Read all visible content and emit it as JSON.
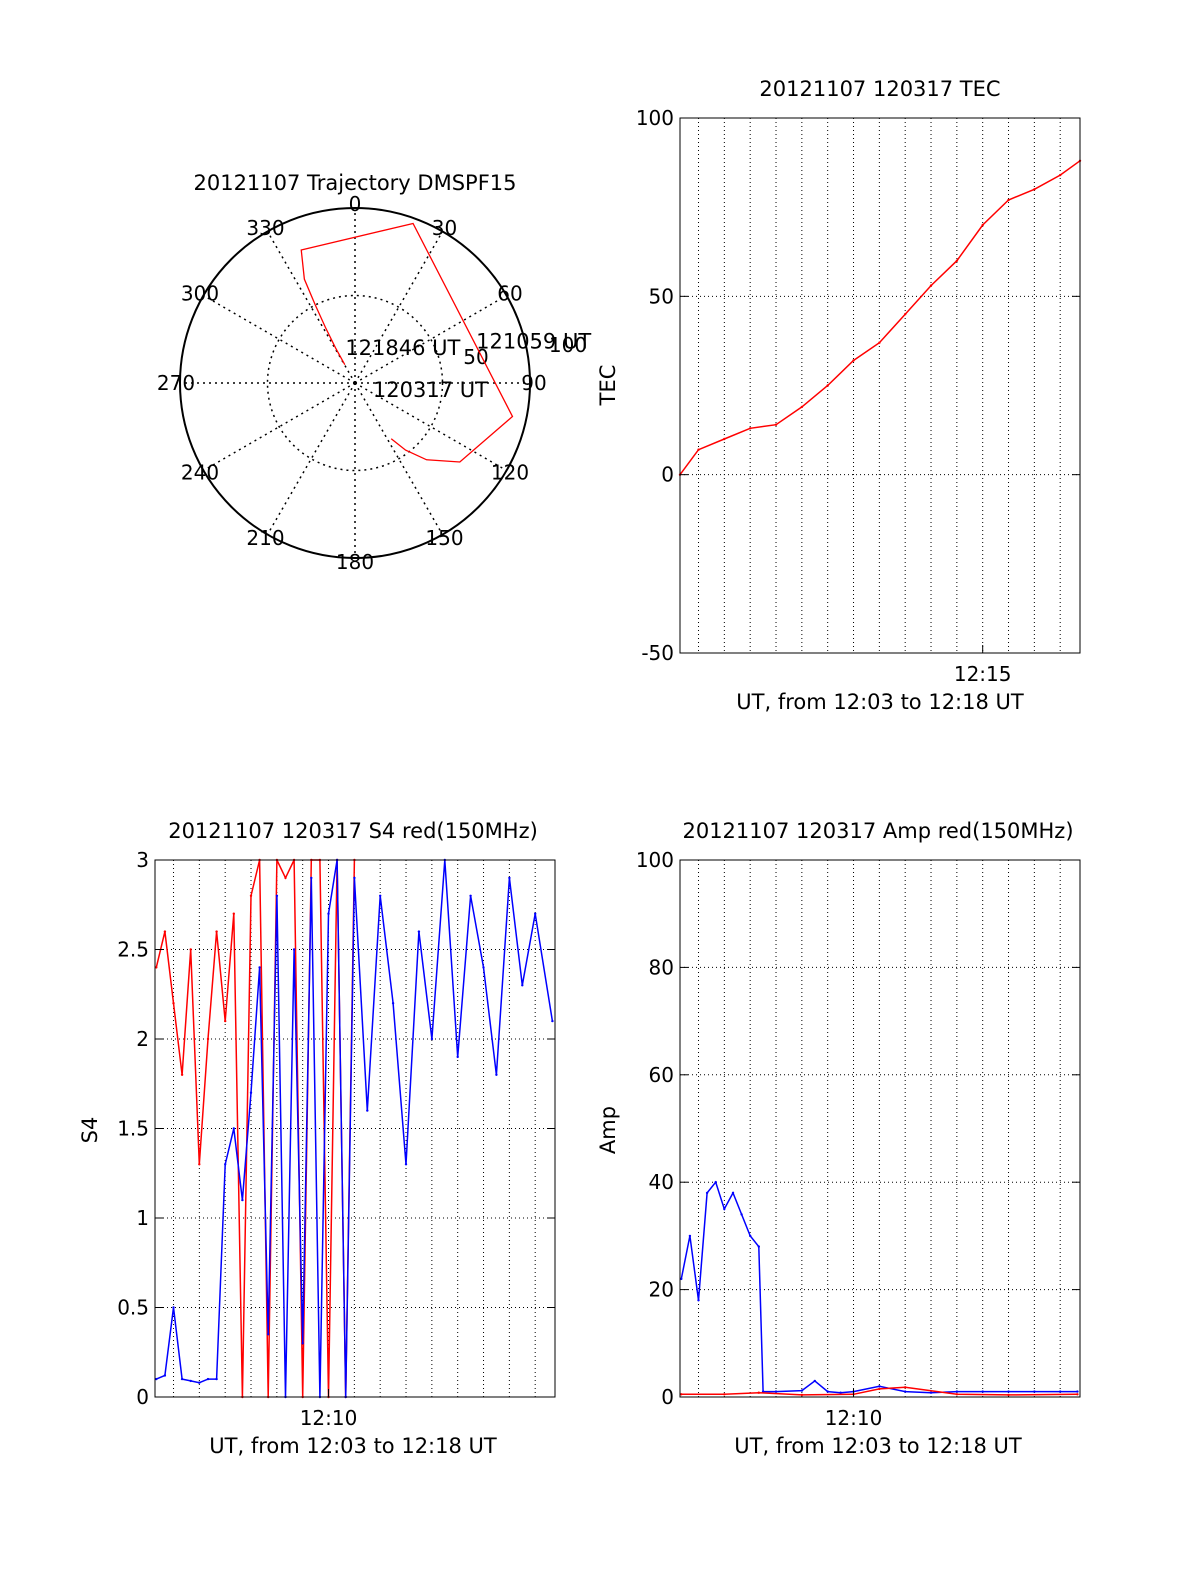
{
  "chart_data": [
    {
      "type": "polar",
      "title": "20121107 Trajectory DMSPF15",
      "angle_labels": [
        "0",
        "30",
        "60",
        "90",
        "120",
        "150",
        "180",
        "210",
        "240",
        "270",
        "300",
        "330"
      ],
      "radial_labels": [
        "50",
        "100"
      ],
      "rmax": 100,
      "grid": true,
      "colors": {
        "trajectory": "#ff0000"
      },
      "trajectory": [
        {
          "az": 147,
          "el": 38
        },
        {
          "az": 143,
          "el": 48
        },
        {
          "az": 137,
          "el": 60
        },
        {
          "az": 127,
          "el": 75
        },
        {
          "az": 102,
          "el": 92
        },
        {
          "az": 20,
          "el": 97
        },
        {
          "az": -22,
          "el": 82
        },
        {
          "az": -26,
          "el": 66
        },
        {
          "az": -27,
          "el": 50
        },
        {
          "az": -28,
          "el": 36
        },
        {
          "az": -29,
          "el": 23
        },
        {
          "az": -29,
          "el": 12
        }
      ],
      "annotations": [
        {
          "text": "121846 UT",
          "az": -19,
          "el": 17
        },
        {
          "text": "121059 UT",
          "az": 74,
          "el": 72
        },
        {
          "text": "120317 UT",
          "az": 128,
          "el": 13
        }
      ]
    },
    {
      "type": "line",
      "title": "20121107 120317 TEC",
      "xlabel": "UT, from 12:03 to 12:18 UT",
      "ylabel": "TEC",
      "xlim": [
        "12:03:17",
        "12:18:46"
      ],
      "ylim": [
        -50,
        100
      ],
      "yticks": [
        -50,
        0,
        50,
        100
      ],
      "xticks": [
        {
          "value": "12:15:00",
          "label": "12:15"
        }
      ],
      "grid": true,
      "series": [
        {
          "color": "#ff0000",
          "x": [
            "12:03:17",
            "12:04:00",
            "12:05:00",
            "12:06:00",
            "12:07:00",
            "12:08:00",
            "12:09:00",
            "12:10:00",
            "12:11:00",
            "12:12:00",
            "12:13:00",
            "12:14:00",
            "12:15:00",
            "12:16:00",
            "12:17:00",
            "12:18:00",
            "12:18:46"
          ],
          "values": [
            0,
            7,
            10,
            13,
            14,
            19,
            25,
            32,
            37,
            45,
            53,
            60,
            70,
            77,
            80,
            84,
            88
          ]
        }
      ]
    },
    {
      "type": "line",
      "title": "20121107 120317 S4 red(150MHz)",
      "xlabel": "UT, from 12:03 to 12:18 UT",
      "ylabel": "S4",
      "xlim": [
        "12:03:17",
        "12:18:46"
      ],
      "ylim": [
        0,
        3
      ],
      "yticks": [
        0,
        0.5,
        1,
        1.5,
        2,
        2.5,
        3
      ],
      "xticks": [
        {
          "value": "12:10:00",
          "label": "12:10"
        }
      ],
      "grid": true,
      "series": [
        {
          "color": "#ff0000",
          "x": [
            "12:03:20",
            "12:03:40",
            "12:04:00",
            "12:04:20",
            "12:04:40",
            "12:05:00",
            "12:05:20",
            "12:05:40",
            "12:06:00",
            "12:06:20",
            "12:06:40",
            "12:07:00",
            "12:07:20",
            "12:07:40",
            "12:08:00",
            "12:08:20",
            "12:08:40",
            "12:09:00",
            "12:09:20",
            "12:09:40",
            "12:10:00",
            "12:10:20",
            "12:10:40",
            "12:11:00"
          ],
          "values": [
            2.4,
            2.6,
            2.2,
            1.8,
            2.5,
            1.3,
            2.0,
            2.6,
            2.1,
            2.7,
            0.0,
            2.8,
            3.0,
            0.0,
            3.0,
            2.9,
            3.0,
            0.0,
            3.0,
            3.0,
            0.0,
            3.0,
            0.0,
            3.0
          ]
        },
        {
          "color": "#0000ff",
          "x": [
            "12:03:20",
            "12:03:40",
            "12:04:00",
            "12:04:20",
            "12:04:40",
            "12:05:00",
            "12:05:20",
            "12:05:40",
            "12:06:00",
            "12:06:20",
            "12:06:40",
            "12:07:00",
            "12:07:20",
            "12:07:40",
            "12:08:00",
            "12:08:20",
            "12:08:40",
            "12:09:00",
            "12:09:20",
            "12:09:40",
            "12:10:00",
            "12:10:20",
            "12:10:40",
            "12:11:00",
            "12:11:30",
            "12:12:00",
            "12:12:30",
            "12:13:00",
            "12:13:30",
            "12:14:00",
            "12:14:30",
            "12:15:00",
            "12:15:30",
            "12:16:00",
            "12:16:30",
            "12:17:00",
            "12:17:30",
            "12:18:00",
            "12:18:40"
          ],
          "values": [
            0.1,
            0.12,
            0.5,
            0.1,
            0.09,
            0.08,
            0.1,
            0.1,
            1.3,
            1.5,
            1.1,
            1.7,
            2.4,
            0.35,
            2.8,
            0.0,
            2.5,
            0.3,
            2.9,
            0.0,
            2.7,
            3.0,
            0.0,
            2.9,
            1.6,
            2.8,
            2.2,
            1.3,
            2.6,
            2.0,
            3.0,
            1.9,
            2.8,
            2.4,
            1.8,
            2.9,
            2.3,
            2.7,
            2.1
          ]
        }
      ]
    },
    {
      "type": "line",
      "title": "20121107 120317 Amp red(150MHz)",
      "xlabel": "UT, from 12:03 to 12:18 UT",
      "ylabel": "Amp",
      "xlim": [
        "12:03:17",
        "12:18:46"
      ],
      "ylim": [
        0,
        100
      ],
      "yticks": [
        0,
        20,
        40,
        60,
        80,
        100
      ],
      "xticks": [
        {
          "value": "12:10:00",
          "label": "12:10"
        }
      ],
      "grid": true,
      "series": [
        {
          "color": "#0000ff",
          "x": [
            "12:03:20",
            "12:03:40",
            "12:04:00",
            "12:04:20",
            "12:04:40",
            "12:05:00",
            "12:05:20",
            "12:05:40",
            "12:06:00",
            "12:06:20",
            "12:06:30",
            "12:07:00",
            "12:08:00",
            "12:08:30",
            "12:09:00",
            "12:09:30",
            "12:10:00",
            "12:11:00",
            "12:12:00",
            "12:13:00",
            "12:14:00",
            "12:15:00",
            "12:16:00",
            "12:17:00",
            "12:18:00",
            "12:18:40"
          ],
          "values": [
            22,
            30,
            18,
            38,
            40,
            35,
            38,
            34,
            30,
            28,
            1,
            1,
            1.2,
            3,
            1,
            0.8,
            1,
            2,
            1,
            0.8,
            1,
            1,
            1,
            1,
            1,
            1
          ]
        },
        {
          "color": "#ff0000",
          "x": [
            "12:03:20",
            "12:05:00",
            "12:06:20",
            "12:08:00",
            "12:10:00",
            "12:11:00",
            "12:12:00",
            "12:14:00",
            "12:16:00",
            "12:18:40"
          ],
          "values": [
            0.5,
            0.5,
            0.8,
            0.4,
            0.5,
            1.5,
            1.8,
            0.5,
            0.4,
            0.5
          ]
        }
      ]
    }
  ]
}
